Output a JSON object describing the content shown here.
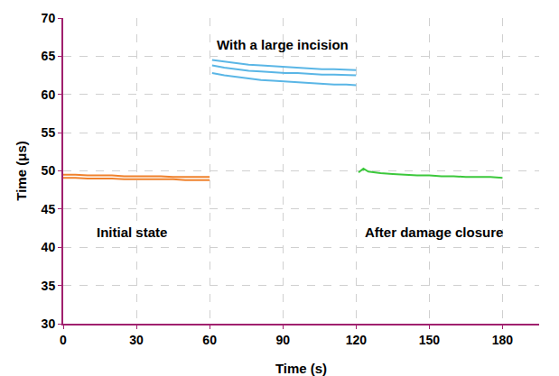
{
  "chart_data": {
    "type": "line",
    "x_label": "Time (s)",
    "y_label": "Time (μs)",
    "xlim": [
      0,
      195
    ],
    "xticks": [
      0,
      30,
      60,
      90,
      120,
      150,
      180
    ],
    "ylim": [
      30,
      70
    ],
    "yticks": [
      30,
      35,
      40,
      45,
      50,
      55,
      60,
      65,
      70
    ],
    "grid": true,
    "series": [
      {
        "color": "#f0822d",
        "x": [
          0,
          5,
          10,
          15,
          20,
          25,
          30,
          35,
          40,
          45,
          50,
          55,
          60
        ],
        "values": [
          49.5,
          49.5,
          49.4,
          49.4,
          49.4,
          49.3,
          49.3,
          49.3,
          49.3,
          49.2,
          49.2,
          49.2,
          49.2
        ]
      },
      {
        "color": "#f0822d",
        "x": [
          0,
          5,
          10,
          15,
          20,
          25,
          30,
          35,
          40,
          45,
          50,
          55,
          60
        ],
        "values": [
          49.1,
          49.1,
          49.0,
          49.0,
          49.0,
          48.9,
          48.9,
          48.9,
          48.9,
          48.9,
          48.8,
          48.8,
          48.8
        ]
      },
      {
        "color": "#5ab6e6",
        "x": [
          61,
          66,
          71,
          76,
          81,
          86,
          91,
          96,
          101,
          106,
          111,
          116,
          120
        ],
        "values": [
          64.5,
          64.3,
          64.1,
          63.9,
          63.8,
          63.7,
          63.6,
          63.5,
          63.4,
          63.3,
          63.3,
          63.2,
          63.2
        ]
      },
      {
        "color": "#5ab6e6",
        "x": [
          61,
          66,
          71,
          76,
          81,
          86,
          91,
          96,
          101,
          106,
          111,
          116,
          120
        ],
        "values": [
          63.8,
          63.5,
          63.3,
          63.1,
          63.0,
          62.9,
          62.8,
          62.8,
          62.7,
          62.6,
          62.6,
          62.5,
          62.5
        ]
      },
      {
        "color": "#5ab6e6",
        "x": [
          61,
          66,
          71,
          76,
          81,
          86,
          91,
          96,
          101,
          106,
          111,
          116,
          120
        ],
        "values": [
          62.8,
          62.5,
          62.3,
          62.1,
          61.9,
          61.8,
          61.7,
          61.6,
          61.5,
          61.4,
          61.3,
          61.3,
          61.2
        ]
      },
      {
        "color": "#3cc83c",
        "x": [
          121,
          123,
          125,
          130,
          135,
          140,
          145,
          150,
          155,
          160,
          165,
          170,
          175,
          180
        ],
        "values": [
          49.8,
          50.3,
          49.9,
          49.7,
          49.6,
          49.5,
          49.4,
          49.4,
          49.3,
          49.3,
          49.2,
          49.2,
          49.2,
          49.1
        ]
      }
    ],
    "annotations": [
      {
        "text": "With a large incision",
        "x": 90,
        "y": 66.5
      },
      {
        "text": "Initial state",
        "x": 28,
        "y": 42
      },
      {
        "text": "After damage closure",
        "x": 152,
        "y": 42
      }
    ]
  }
}
